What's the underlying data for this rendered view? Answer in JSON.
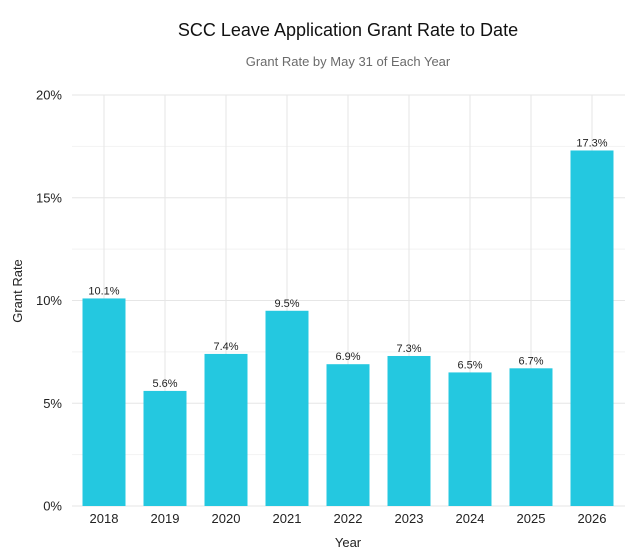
{
  "chart_data": {
    "type": "bar",
    "title": "SCC Leave Application Grant Rate to Date",
    "subtitle": "Grant Rate by May 31 of Each Year",
    "xlabel": "Year",
    "ylabel": "Grant Rate",
    "categories": [
      "2018",
      "2019",
      "2020",
      "2021",
      "2022",
      "2023",
      "2024",
      "2025",
      "2026"
    ],
    "values": [
      10.1,
      5.6,
      7.4,
      9.5,
      6.9,
      7.3,
      6.5,
      6.7,
      17.3
    ],
    "value_labels": [
      "10.1%",
      "5.6%",
      "7.4%",
      "9.5%",
      "6.9%",
      "7.3%",
      "6.5%",
      "6.7%",
      "17.3%"
    ],
    "ylim": [
      0,
      20
    ],
    "yticks": [
      0,
      5,
      10,
      15,
      20
    ],
    "ytick_labels": [
      "0%",
      "5%",
      "10%",
      "15%",
      "20%"
    ],
    "bar_color": "#24C8E0",
    "grid": true,
    "legend": "none"
  }
}
